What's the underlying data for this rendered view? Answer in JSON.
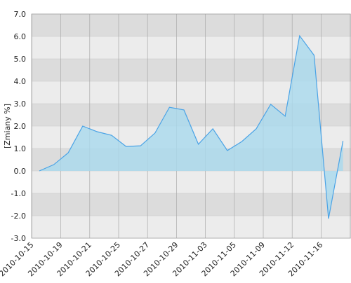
{
  "chart_data": {
    "type": "area",
    "y_label": "[Zmiany %]",
    "categories": [
      "2010-10-15",
      null,
      "2010-10-19",
      null,
      "2010-10-21",
      null,
      "2010-10-25",
      null,
      "2010-10-27",
      null,
      "2010-10-29",
      null,
      "2010-11-03",
      null,
      "2010-11-05",
      null,
      "2010-11-09",
      null,
      "2010-11-12",
      null,
      "2010-11-16",
      null
    ],
    "values": [
      0.0,
      0.28,
      0.81,
      2.0,
      1.75,
      1.59,
      1.09,
      1.12,
      1.69,
      2.84,
      2.72,
      1.19,
      1.88,
      0.91,
      1.31,
      1.88,
      2.97,
      2.44,
      6.03,
      5.16,
      -2.13,
      1.34
    ],
    "color": "#4aa3e6",
    "fill": "#a9d9ee",
    "ylim": [
      -3,
      7
    ],
    "yticks": [
      {
        "value": -3,
        "label": "-3.0"
      },
      {
        "value": -2,
        "label": "-2.0"
      },
      {
        "value": -1,
        "label": "-1.0"
      },
      {
        "value": 0,
        "label": "0.0"
      },
      {
        "value": 1,
        "label": "1.0"
      },
      {
        "value": 2,
        "label": "2.0"
      },
      {
        "value": 3,
        "label": "3.0"
      },
      {
        "value": 4,
        "label": "4.0"
      },
      {
        "value": 5,
        "label": "5.0"
      },
      {
        "value": 6,
        "label": "6.0"
      },
      {
        "value": 7,
        "label": "7.0"
      }
    ],
    "grid": true
  }
}
